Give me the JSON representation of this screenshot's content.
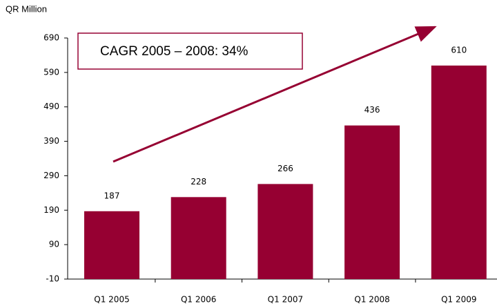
{
  "chart_data": {
    "type": "bar",
    "ylabel": "QR Million",
    "annotation": "CAGR  2005 – 2008: 34%",
    "categories": [
      "Q1 2005",
      "Q1 2006",
      "Q1 2007",
      "Q1 2008",
      "Q1 2009"
    ],
    "values": [
      187,
      228,
      266,
      436,
      610
    ],
    "color": "#960032",
    "ylim": [
      -10,
      690
    ],
    "yticks": [
      -10,
      90,
      190,
      290,
      390,
      490,
      590,
      690
    ],
    "grid": false
  }
}
